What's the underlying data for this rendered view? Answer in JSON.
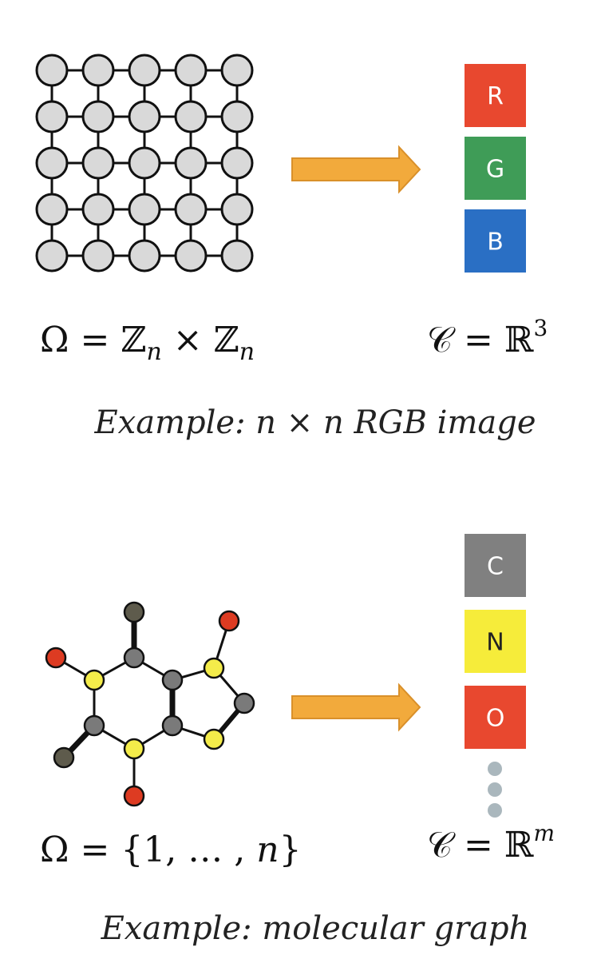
{
  "top": {
    "formula_omega": "Ω = ℤ",
    "formula_omega_sub1": "n",
    "formula_times": " × ℤ",
    "formula_omega_sub2": "n",
    "formula_c": "𝒞 = ℝ",
    "formula_c_sup": "3",
    "caption": "Example: n × n RGB image",
    "channels": [
      {
        "label": "R",
        "color": "#e8482f",
        "text_color": "#ffffff"
      },
      {
        "label": "G",
        "color": "#3f9c57",
        "text_color": "#ffffff"
      },
      {
        "label": "B",
        "color": "#2a6fc4",
        "text_color": "#ffffff"
      }
    ]
  },
  "bottom": {
    "formula_omega": "Ω = {1, … , ",
    "formula_omega_n": "n",
    "formula_omega_close": "}",
    "formula_c": "𝒞 = ℝ",
    "formula_c_sup": "m",
    "caption": "Example: molecular graph",
    "channels": [
      {
        "label": "C",
        "color": "#808080",
        "text_color": "#ffffff"
      },
      {
        "label": "N",
        "color": "#f6ec3a",
        "text_color": "#222222"
      },
      {
        "label": "O",
        "color": "#e8482f",
        "text_color": "#ffffff"
      }
    ]
  },
  "colors": {
    "grid_node": "#d9d9d9",
    "arrow": "#f2aa3c",
    "atom_carbon": "#7a7a7a",
    "atom_nitrogen": "#f4ec4a",
    "atom_oxygen": "#dd3b22",
    "atom_methyl": "#5e5b4c",
    "ellipsis_dot": "#aab7bd"
  }
}
